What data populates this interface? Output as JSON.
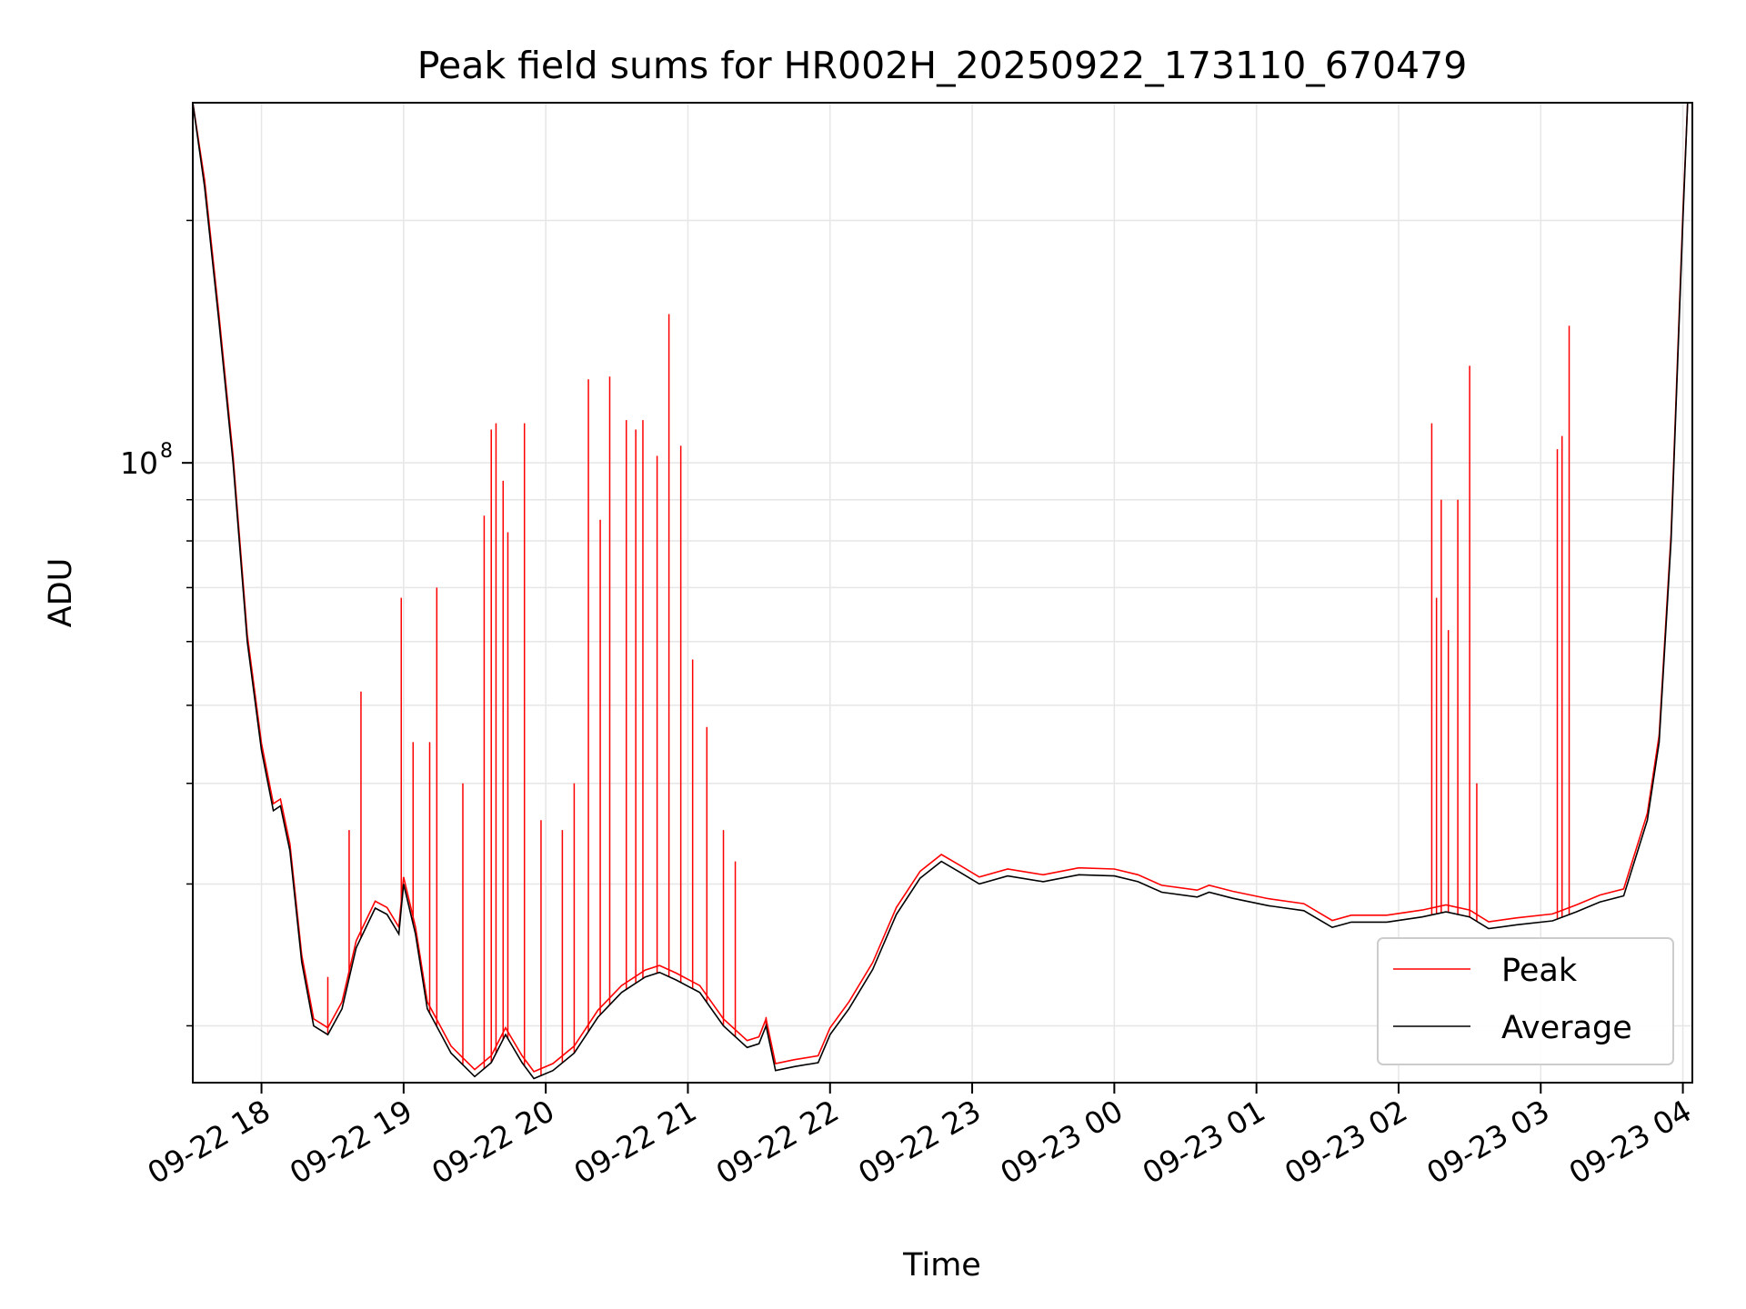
{
  "chart_data": {
    "type": "line",
    "title": "Peak field sums for HR002H_20250922_173110_670479",
    "xlabel": "Time",
    "ylabel": "ADU",
    "y_scale": "log",
    "ylim": [
      17000000,
      280000000
    ],
    "xlim": [
      "2025-09-22 17:31",
      "2025-09-23 04:04"
    ],
    "x_ticks": [
      "09-22 18",
      "09-22 19",
      "09-22 20",
      "09-22 21",
      "09-22 22",
      "09-22 23",
      "09-23 00",
      "09-23 01",
      "09-23 02",
      "09-23 03",
      "09-23 04"
    ],
    "y_tick_labels": [
      {
        "value": 100000000,
        "base": "10",
        "exp": "8"
      }
    ],
    "grid": true,
    "legend": "lower-right",
    "average_points": [
      [
        "2025-09-22 17:31",
        280000000
      ],
      [
        "2025-09-22 17:36",
        220000000
      ],
      [
        "2025-09-22 17:42",
        150000000
      ],
      [
        "2025-09-22 17:48",
        100000000
      ],
      [
        "2025-09-22 17:54",
        60000000
      ],
      [
        "2025-09-22 18:00",
        44000000
      ],
      [
        "2025-09-22 18:05",
        37000000
      ],
      [
        "2025-09-22 18:08",
        37500000
      ],
      [
        "2025-09-22 18:12",
        33000000
      ],
      [
        "2025-09-22 18:17",
        24000000
      ],
      [
        "2025-09-22 18:22",
        20000000
      ],
      [
        "2025-09-22 18:28",
        19500000
      ],
      [
        "2025-09-22 18:34",
        21000000
      ],
      [
        "2025-09-22 18:40",
        25000000
      ],
      [
        "2025-09-22 18:48",
        28000000
      ],
      [
        "2025-09-22 18:53",
        27500000
      ],
      [
        "2025-09-22 18:58",
        26000000
      ],
      [
        "2025-09-22 19:00",
        30000000
      ],
      [
        "2025-09-22 19:05",
        26000000
      ],
      [
        "2025-09-22 19:10",
        21000000
      ],
      [
        "2025-09-22 19:20",
        18500000
      ],
      [
        "2025-09-22 19:30",
        17300000
      ],
      [
        "2025-09-22 19:37",
        18000000
      ],
      [
        "2025-09-22 19:43",
        19500000
      ],
      [
        "2025-09-22 19:50",
        18000000
      ],
      [
        "2025-09-22 19:55",
        17200000
      ],
      [
        "2025-09-22 20:03",
        17600000
      ],
      [
        "2025-09-22 20:12",
        18500000
      ],
      [
        "2025-09-22 20:22",
        20500000
      ],
      [
        "2025-09-22 20:32",
        22000000
      ],
      [
        "2025-09-22 20:42",
        23000000
      ],
      [
        "2025-09-22 20:48",
        23300000
      ],
      [
        "2025-09-22 20:55",
        22800000
      ],
      [
        "2025-09-22 21:05",
        22000000
      ],
      [
        "2025-09-22 21:15",
        20000000
      ],
      [
        "2025-09-22 21:25",
        18800000
      ],
      [
        "2025-09-22 21:30",
        19000000
      ],
      [
        "2025-09-22 21:33",
        20000000
      ],
      [
        "2025-09-22 21:37",
        17600000
      ],
      [
        "2025-09-22 21:45",
        17800000
      ],
      [
        "2025-09-22 21:55",
        18000000
      ],
      [
        "2025-09-22 22:00",
        19500000
      ],
      [
        "2025-09-22 22:08",
        21000000
      ],
      [
        "2025-09-22 22:18",
        23500000
      ],
      [
        "2025-09-22 22:28",
        27500000
      ],
      [
        "2025-09-22 22:38",
        30500000
      ],
      [
        "2025-09-22 22:47",
        32000000
      ],
      [
        "2025-09-22 22:55",
        31000000
      ],
      [
        "2025-09-22 23:03",
        30000000
      ],
      [
        "2025-09-22 23:15",
        30700000
      ],
      [
        "2025-09-22 23:30",
        30200000
      ],
      [
        "2025-09-22 23:45",
        30800000
      ],
      [
        "2025-09-23 00:00",
        30700000
      ],
      [
        "2025-09-23 00:10",
        30200000
      ],
      [
        "2025-09-23 00:20",
        29300000
      ],
      [
        "2025-09-23 00:35",
        28900000
      ],
      [
        "2025-09-23 00:40",
        29300000
      ],
      [
        "2025-09-23 00:50",
        28800000
      ],
      [
        "2025-09-23 01:05",
        28200000
      ],
      [
        "2025-09-23 01:20",
        27800000
      ],
      [
        "2025-09-23 01:32",
        26500000
      ],
      [
        "2025-09-23 01:40",
        26900000
      ],
      [
        "2025-09-23 01:55",
        26900000
      ],
      [
        "2025-09-23 02:10",
        27300000
      ],
      [
        "2025-09-23 02:20",
        27700000
      ],
      [
        "2025-09-23 02:30",
        27300000
      ],
      [
        "2025-09-23 02:38",
        26400000
      ],
      [
        "2025-09-23 02:50",
        26700000
      ],
      [
        "2025-09-23 03:05",
        27000000
      ],
      [
        "2025-09-23 03:15",
        27700000
      ],
      [
        "2025-09-23 03:25",
        28500000
      ],
      [
        "2025-09-23 03:35",
        29000000
      ],
      [
        "2025-09-23 03:45",
        36000000
      ],
      [
        "2025-09-23 03:50",
        45000000
      ],
      [
        "2025-09-23 03:55",
        80000000
      ],
      [
        "2025-09-23 04:00",
        200000000
      ],
      [
        "2025-09-23 04:02",
        280000000
      ]
    ],
    "peak_spikes": [
      [
        "2025-09-22 18:28",
        23000000
      ],
      [
        "2025-09-22 18:37",
        35000000
      ],
      [
        "2025-09-22 18:42",
        52000000
      ],
      [
        "2025-09-22 18:59",
        68000000
      ],
      [
        "2025-09-22 19:04",
        45000000
      ],
      [
        "2025-09-22 19:11",
        45000000
      ],
      [
        "2025-09-22 19:14",
        70000000
      ],
      [
        "2025-09-22 19:25",
        40000000
      ],
      [
        "2025-09-22 19:34",
        86000000
      ],
      [
        "2025-09-22 19:37",
        110000000
      ],
      [
        "2025-09-22 19:39",
        112000000
      ],
      [
        "2025-09-22 19:42",
        95000000
      ],
      [
        "2025-09-22 19:44",
        82000000
      ],
      [
        "2025-09-22 19:51",
        112000000
      ],
      [
        "2025-09-22 19:58",
        36000000
      ],
      [
        "2025-09-22 20:07",
        35000000
      ],
      [
        "2025-09-22 20:12",
        40000000
      ],
      [
        "2025-09-22 20:18",
        127000000
      ],
      [
        "2025-09-22 20:23",
        85000000
      ],
      [
        "2025-09-22 20:27",
        128000000
      ],
      [
        "2025-09-22 20:34",
        113000000
      ],
      [
        "2025-09-22 20:38",
        110000000
      ],
      [
        "2025-09-22 20:41",
        113000000
      ],
      [
        "2025-09-22 20:47",
        102000000
      ],
      [
        "2025-09-22 20:52",
        153000000
      ],
      [
        "2025-09-22 20:57",
        105000000
      ],
      [
        "2025-09-22 21:02",
        57000000
      ],
      [
        "2025-09-22 21:08",
        47000000
      ],
      [
        "2025-09-22 21:15",
        35000000
      ],
      [
        "2025-09-22 21:20",
        32000000
      ],
      [
        "2025-09-22 21:33",
        20500000
      ],
      [
        "2025-09-23 02:14",
        112000000
      ],
      [
        "2025-09-23 02:16",
        68000000
      ],
      [
        "2025-09-23 02:18",
        90000000
      ],
      [
        "2025-09-23 02:21",
        62000000
      ],
      [
        "2025-09-23 02:25",
        90000000
      ],
      [
        "2025-09-23 02:30",
        132000000
      ],
      [
        "2025-09-23 02:33",
        40000000
      ],
      [
        "2025-09-23 03:07",
        104000000
      ],
      [
        "2025-09-23 03:09",
        108000000
      ],
      [
        "2025-09-23 03:12",
        148000000
      ]
    ],
    "series": [
      {
        "name": "Peak",
        "color": "#ff0000"
      },
      {
        "name": "Average",
        "color": "#000000"
      }
    ]
  }
}
